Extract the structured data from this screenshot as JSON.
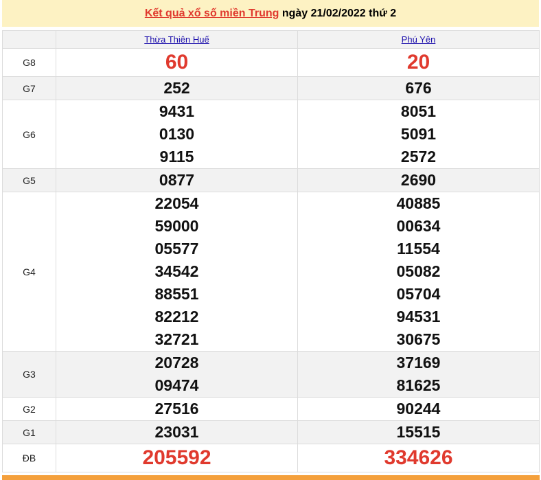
{
  "header": {
    "link_text": "Kết quả xổ số miền Trung",
    "rest_text": " ngày 21/02/2022 thứ 2"
  },
  "provinces": [
    "Thừa Thiên Huế",
    "Phú Yên"
  ],
  "prizes": [
    {
      "label": "G8",
      "special": true,
      "values": [
        [
          "60"
        ],
        [
          "20"
        ]
      ]
    },
    {
      "label": "G7",
      "values": [
        [
          "252"
        ],
        [
          "676"
        ]
      ]
    },
    {
      "label": "G6",
      "values": [
        [
          "9431",
          "0130",
          "9115"
        ],
        [
          "8051",
          "5091",
          "2572"
        ]
      ]
    },
    {
      "label": "G5",
      "values": [
        [
          "0877"
        ],
        [
          "2690"
        ]
      ]
    },
    {
      "label": "G4",
      "values": [
        [
          "22054",
          "59000",
          "05577",
          "34542",
          "88551",
          "82212",
          "32721"
        ],
        [
          "40885",
          "00634",
          "11554",
          "05082",
          "05704",
          "94531",
          "30675"
        ]
      ]
    },
    {
      "label": "G3",
      "values": [
        [
          "20728",
          "09474"
        ],
        [
          "37169",
          "81625"
        ]
      ]
    },
    {
      "label": "G2",
      "values": [
        [
          "27516"
        ],
        [
          "90244"
        ]
      ]
    },
    {
      "label": "G1",
      "values": [
        [
          "23031"
        ],
        [
          "15515"
        ]
      ]
    },
    {
      "label": "ĐB",
      "special": true,
      "values": [
        [
          "205592"
        ],
        [
          "334626"
        ]
      ]
    }
  ],
  "colors": {
    "accent_red": "#e03a2e",
    "header_bg": "#fdf2c3",
    "bottom_bar": "#f4a03c"
  }
}
